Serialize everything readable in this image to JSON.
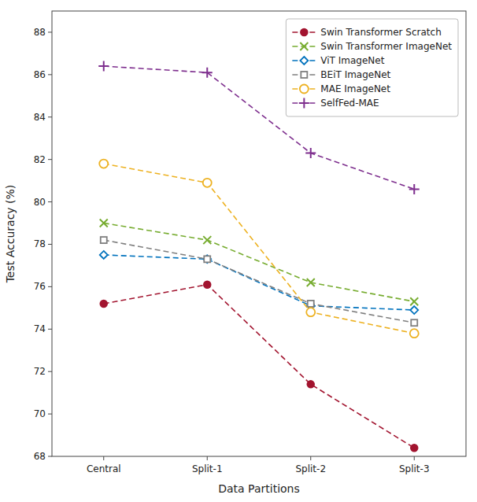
{
  "chart_data": {
    "type": "line",
    "x_label": "Data Partitions",
    "y_label": "Test Accuracy (%)",
    "categories": [
      "Central",
      "Split-1",
      "Split-2",
      "Split-3"
    ],
    "series": [
      {
        "name": "Swin Transformer Scratch",
        "color": "#A2142F",
        "marker": "circle-filled",
        "line_style": "dashed",
        "values": [
          75.2,
          76.1,
          71.4,
          68.4
        ]
      },
      {
        "name": "Swin Transformer ImageNet",
        "color": "#77AC30",
        "marker": "x",
        "line_style": "dashed",
        "values": [
          79.0,
          78.2,
          76.2,
          75.3
        ]
      },
      {
        "name": "ViT ImageNet",
        "color": "#0072BD",
        "marker": "diamond",
        "line_style": "dashed",
        "values": [
          77.5,
          77.3,
          75.1,
          74.9
        ]
      },
      {
        "name": "BEiT ImageNet",
        "color": "#7F7F7F",
        "marker": "square",
        "line_style": "dashed",
        "values": [
          78.2,
          77.3,
          75.2,
          74.3
        ]
      },
      {
        "name": "MAE ImageNet",
        "color": "#EDB120",
        "marker": "circle",
        "line_style": "dashed",
        "values": [
          81.8,
          80.9,
          74.8,
          73.8
        ]
      },
      {
        "name": "SelfFed-MAE",
        "color": "#7E2F8E",
        "marker": "plus",
        "line_style": "dashed",
        "values": [
          86.4,
          86.1,
          82.3,
          80.6
        ]
      }
    ],
    "ylim": [
      68,
      89
    ],
    "yticks": [
      68,
      70,
      72,
      74,
      76,
      78,
      80,
      82,
      84,
      86,
      88
    ],
    "grid": false,
    "legend": "upper right"
  }
}
